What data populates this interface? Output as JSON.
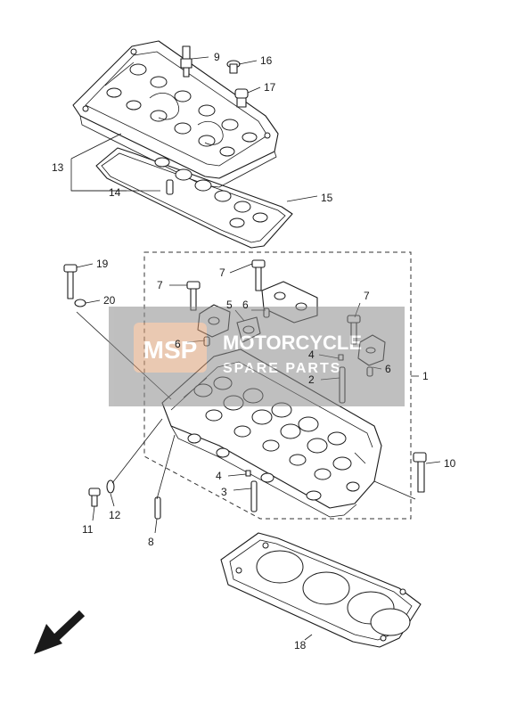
{
  "callouts": [
    {
      "id": "c9",
      "label": "9"
    },
    {
      "id": "c16",
      "label": "16"
    },
    {
      "id": "c17",
      "label": "17"
    },
    {
      "id": "c13",
      "label": "13"
    },
    {
      "id": "c14",
      "label": "14"
    },
    {
      "id": "c15",
      "label": "15"
    },
    {
      "id": "c19",
      "label": "19"
    },
    {
      "id": "c20",
      "label": "20"
    },
    {
      "id": "c7a",
      "label": "7"
    },
    {
      "id": "c7b",
      "label": "7"
    },
    {
      "id": "c7c",
      "label": "7"
    },
    {
      "id": "c5",
      "label": "5"
    },
    {
      "id": "c6a",
      "label": "6"
    },
    {
      "id": "c6b",
      "label": "6"
    },
    {
      "id": "c6c",
      "label": "6"
    },
    {
      "id": "c4a",
      "label": "4"
    },
    {
      "id": "c2",
      "label": "2"
    },
    {
      "id": "c1",
      "label": "1"
    },
    {
      "id": "c10",
      "label": "10"
    },
    {
      "id": "c4b",
      "label": "4"
    },
    {
      "id": "c3",
      "label": "3"
    },
    {
      "id": "c12",
      "label": "12"
    },
    {
      "id": "c11",
      "label": "11"
    },
    {
      "id": "c8",
      "label": "8"
    },
    {
      "id": "c18",
      "label": "18"
    }
  ],
  "watermark": {
    "logo": "MSP",
    "line1": "MOTORCYCLE",
    "line2": "SPARE PARTS"
  },
  "colors": {
    "line": "#1a1a1a",
    "watermark_gray": "#8c8c8c",
    "watermark_orange": "#e8a070"
  }
}
